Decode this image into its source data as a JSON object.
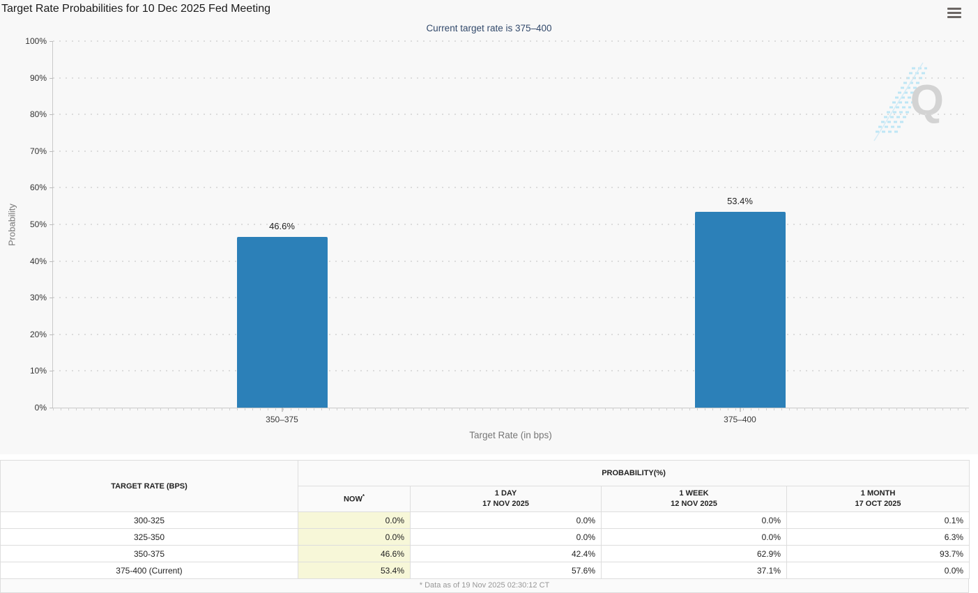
{
  "header": {
    "title": "Target Rate Probabilities for 10 Dec 2025 Fed Meeting",
    "subtitle": "Current target rate is 375–400",
    "menu_icon": "hamburger-menu",
    "watermark_letter": "Q"
  },
  "chart_data": {
    "type": "bar",
    "title": "Target Rate Probabilities for 10 Dec 2025 Fed Meeting",
    "subtitle": "Current target rate is 375–400",
    "categories": [
      "350–375",
      "375–400"
    ],
    "values": [
      46.6,
      53.4
    ],
    "bar_labels": [
      "46.6%",
      "53.4%"
    ],
    "xlabel": "Target Rate (in bps)",
    "ylabel": "Probability",
    "ylim": [
      0,
      100
    ],
    "ytick_step": 10,
    "ytick_suffix": "%",
    "grid": "horizontal-dotted",
    "legend": "none",
    "bar_color": "#2c80b8"
  },
  "table": {
    "col1_header": "TARGET RATE (BPS)",
    "group_header": "PROBABILITY(%)",
    "columns": [
      {
        "label": "NOW",
        "sup": "*",
        "sub": ""
      },
      {
        "label": "1 DAY",
        "sup": "",
        "sub": "17 NOV 2025"
      },
      {
        "label": "1 WEEK",
        "sup": "",
        "sub": "12 NOV 2025"
      },
      {
        "label": "1 MONTH",
        "sup": "",
        "sub": "17 OCT 2025"
      }
    ],
    "rows": [
      {
        "rate": "300-325",
        "now": "0.0%",
        "day": "0.0%",
        "week": "0.0%",
        "month": "0.1%"
      },
      {
        "rate": "325-350",
        "now": "0.0%",
        "day": "0.0%",
        "week": "0.0%",
        "month": "6.3%"
      },
      {
        "rate": "350-375",
        "now": "46.6%",
        "day": "42.4%",
        "week": "62.9%",
        "month": "93.7%"
      },
      {
        "rate": "375-400 (Current)",
        "now": "53.4%",
        "day": "57.6%",
        "week": "37.1%",
        "month": "0.0%"
      }
    ],
    "footnote": "* Data as of 19 Nov 2025 02:30:12 CT"
  },
  "colors": {
    "bar": "#2c80b8",
    "now_cell_bg": "#f7f7d8",
    "subtitle_text": "#32496b",
    "panel_bg": "#f8f8f8",
    "watermark_blue": "#b5e3f5"
  }
}
